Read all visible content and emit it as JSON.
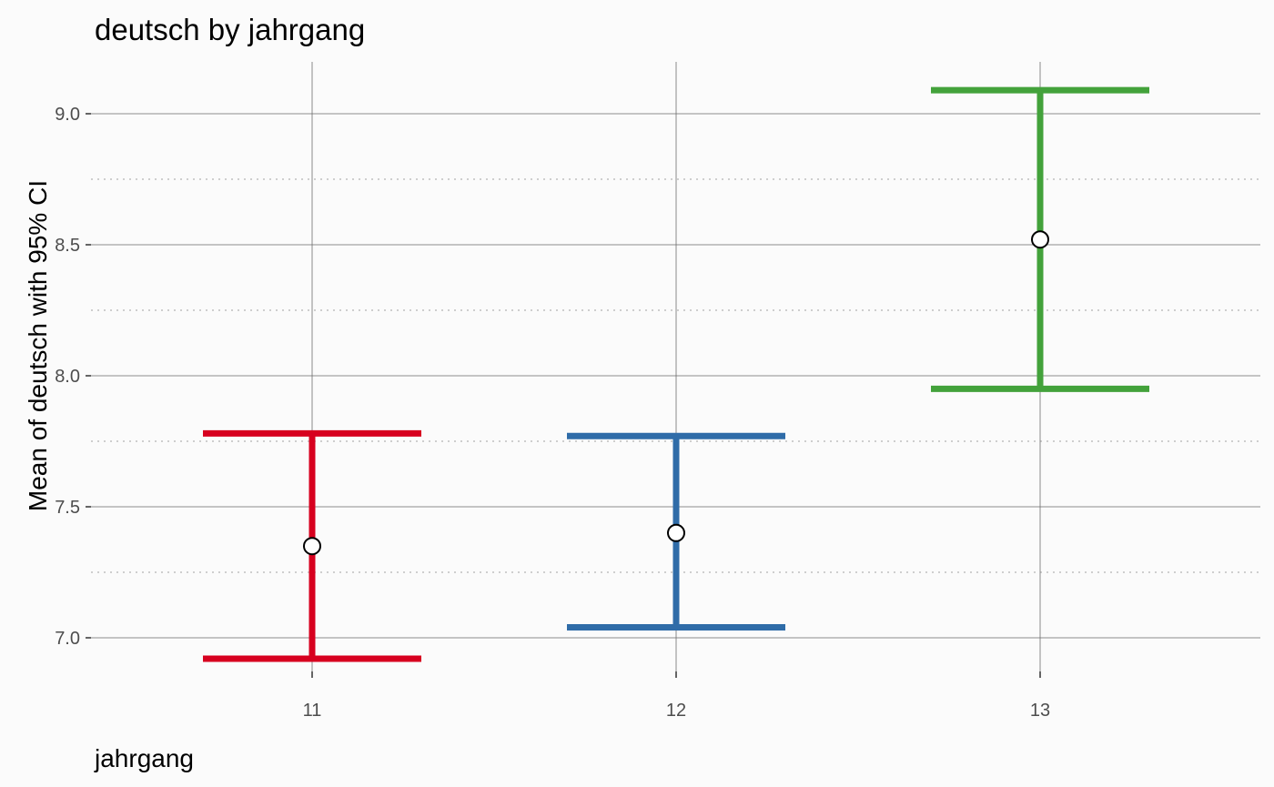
{
  "chart_data": {
    "type": "errorbar",
    "title": "deutsch by jahrgang",
    "xlabel": "jahrgang",
    "ylabel": "Mean of deutsch with 95% CI",
    "categories": [
      "11",
      "12",
      "13"
    ],
    "points": [
      {
        "x": "11",
        "mean": 7.35,
        "lower": 6.92,
        "upper": 7.78,
        "color": "#d7001f"
      },
      {
        "x": "12",
        "mean": 7.4,
        "lower": 7.04,
        "upper": 7.77,
        "color": "#2f6ca8"
      },
      {
        "x": "13",
        "mean": 8.52,
        "lower": 7.95,
        "upper": 9.09,
        "color": "#43a23b"
      }
    ],
    "ylim": [
      6.78,
      9.2
    ],
    "y_ticks": [
      7.0,
      7.5,
      8.0,
      8.5,
      9.0
    ],
    "y_tick_labels": [
      "7.0",
      "7.5",
      "8.0",
      "8.5",
      "9.0"
    ],
    "y_minor_gridlines": [
      7.25,
      7.75,
      8.25,
      8.75
    ],
    "grid": true,
    "legend": "none"
  }
}
